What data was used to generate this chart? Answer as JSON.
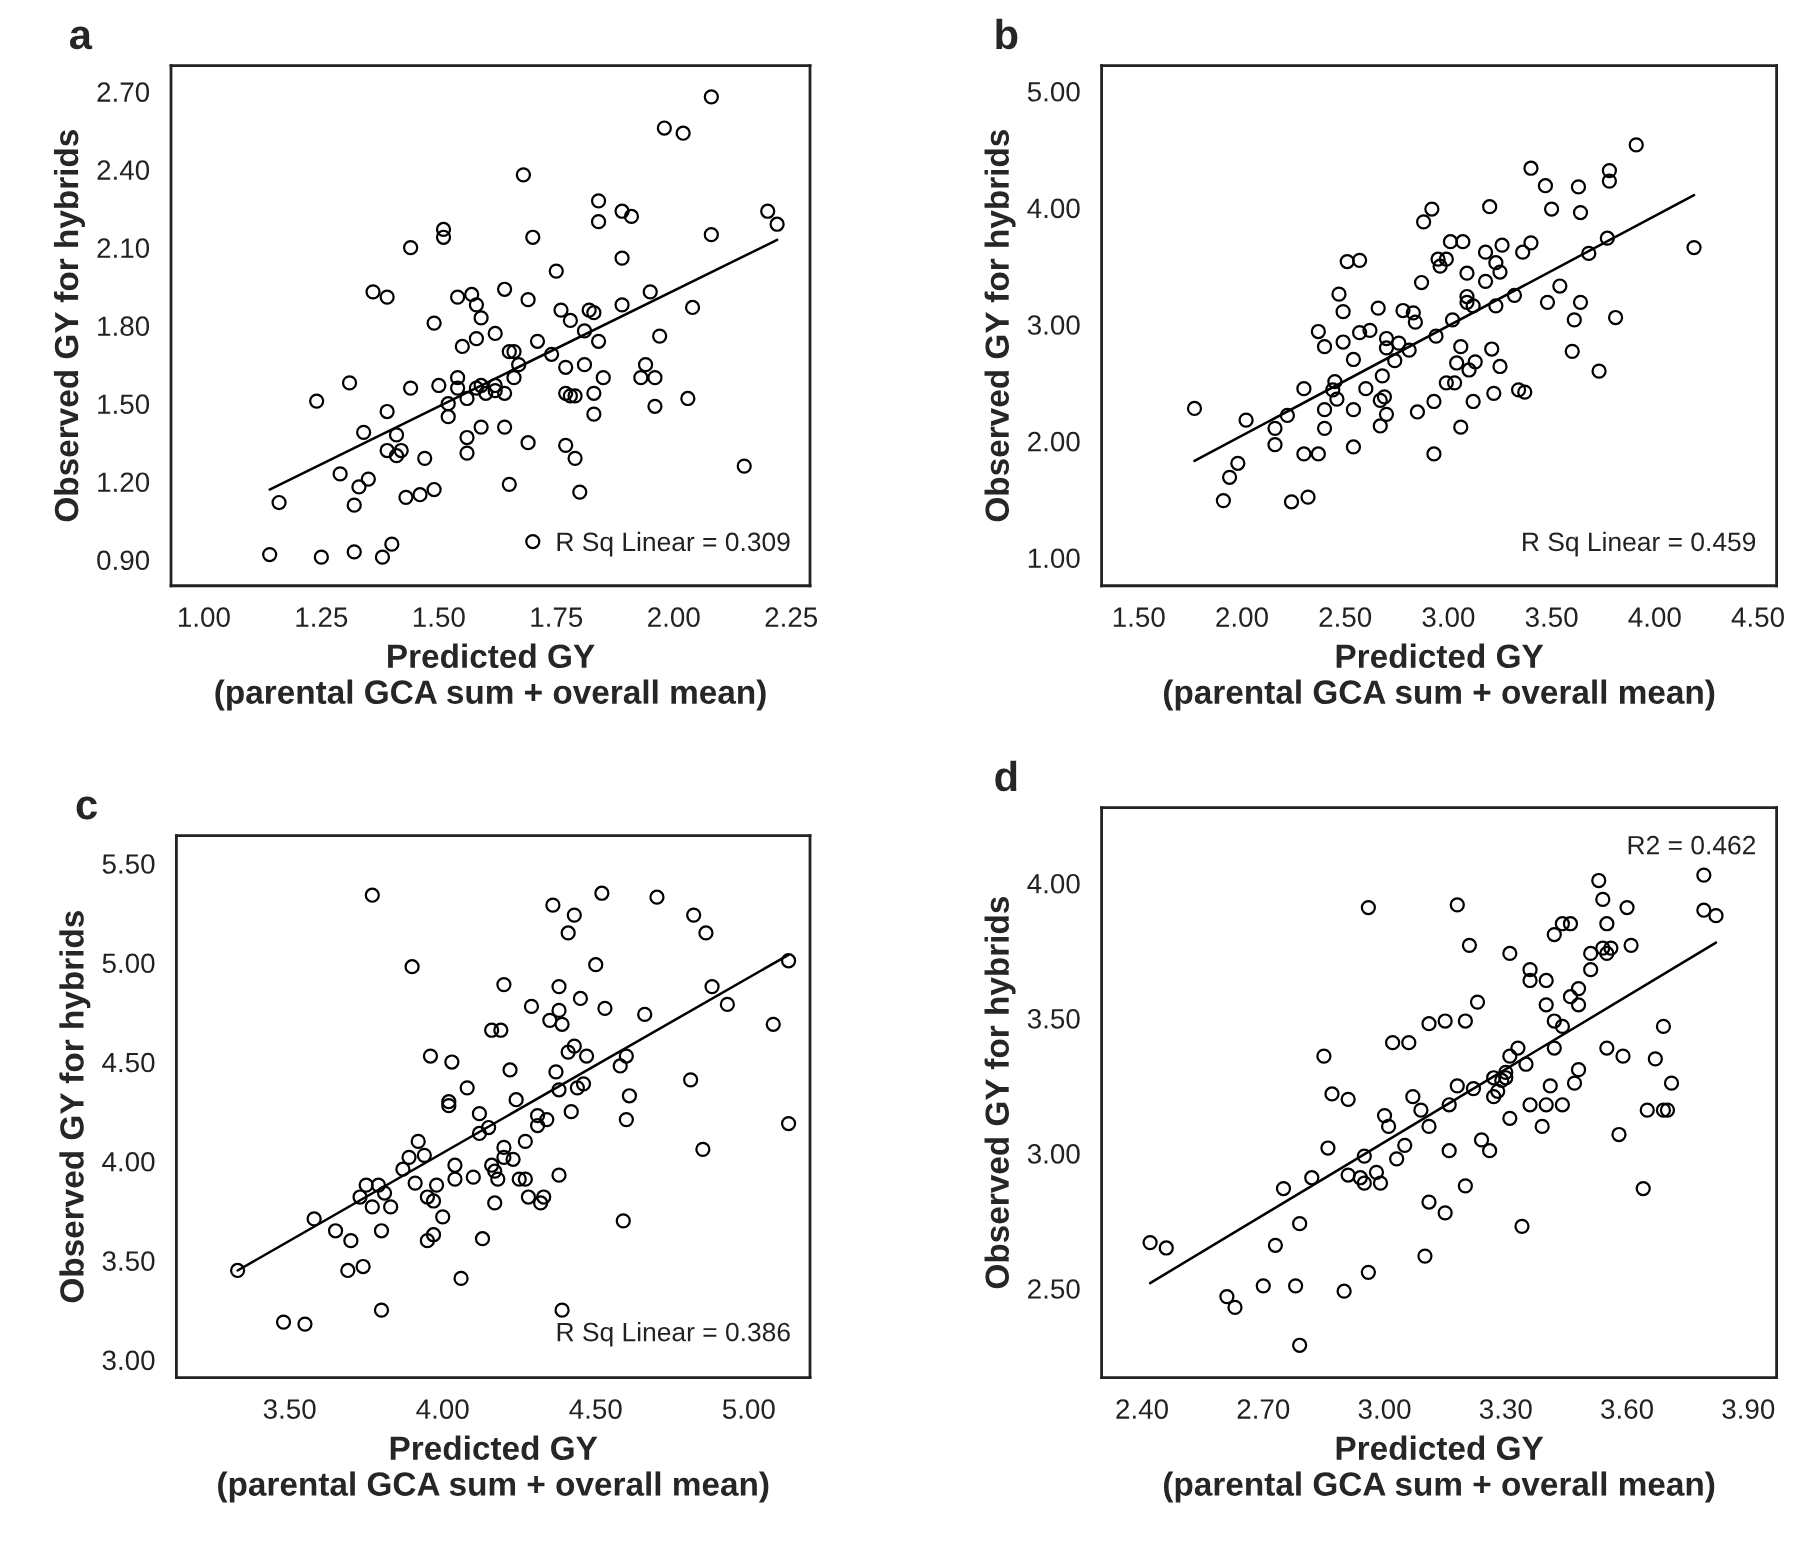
{
  "chart_data": [
    {
      "type": "scatter",
      "title": "a",
      "xlabel": "Predicted GY\n(parental GCA sum + overall mean)",
      "ylabel": "Observed GY for hybrids",
      "annotations": [
        "R Sq Linear = 0.309"
      ],
      "xlim": [
        0.93,
        2.29
      ],
      "ylim": [
        0.8,
        2.8
      ],
      "xticks": [
        {
          "value": 1.0,
          "label": "1.00"
        },
        {
          "value": 1.25,
          "label": "1.25"
        },
        {
          "value": 1.5,
          "label": "1.50"
        },
        {
          "value": 1.75,
          "label": "1.75"
        },
        {
          "value": 2.0,
          "label": "2.00"
        },
        {
          "value": 2.25,
          "label": "2.25"
        }
      ],
      "yticks": [
        {
          "value": 0.9,
          "label": "0.90"
        },
        {
          "value": 1.2,
          "label": "1.20"
        },
        {
          "value": 1.5,
          "label": "1.50"
        },
        {
          "value": 1.8,
          "label": "1.80"
        },
        {
          "value": 2.1,
          "label": "2.10"
        },
        {
          "value": 2.4,
          "label": "2.40"
        },
        {
          "value": 2.7,
          "label": "2.70"
        }
      ],
      "series": [
        {
          "type": "scatter",
          "marker": "circle",
          "color": "#000000",
          "x": [
            1.14,
            1.16,
            1.24,
            1.25,
            1.29,
            1.31,
            1.32,
            1.32,
            1.33,
            1.34,
            1.35,
            1.36,
            1.39,
            1.38,
            1.4,
            1.39,
            1.39,
            1.41,
            1.41,
            1.42,
            1.43,
            1.44,
            1.44,
            1.46,
            1.47,
            1.49,
            1.49,
            1.5,
            1.51,
            1.51,
            1.52,
            1.52,
            1.54,
            1.54,
            1.54,
            1.55,
            1.56,
            1.56,
            1.56,
            1.57,
            1.58,
            1.58,
            1.58,
            1.59,
            1.59,
            1.59,
            1.6,
            1.62,
            1.62,
            1.62,
            1.64,
            1.64,
            1.64,
            1.65,
            1.65,
            1.66,
            1.67,
            1.66,
            1.68,
            1.69,
            1.69,
            1.7,
            1.7,
            1.71,
            1.74,
            1.75,
            1.76,
            1.77,
            1.77,
            1.77,
            1.78,
            1.78,
            1.79,
            1.79,
            1.8,
            1.81,
            1.81,
            1.82,
            1.83,
            1.83,
            1.83,
            1.84,
            1.84,
            1.84,
            1.85,
            1.89,
            1.89,
            1.89,
            1.91,
            1.93,
            1.94,
            1.96,
            1.95,
            1.96,
            1.97,
            1.98,
            2.02,
            2.03,
            2.04,
            2.08,
            2.08,
            2.15,
            2.2,
            2.22
          ],
          "values": [
            0.92,
            1.12,
            1.51,
            0.91,
            1.23,
            1.58,
            1.11,
            0.93,
            1.18,
            1.39,
            1.21,
            1.93,
            1.91,
            0.91,
            0.96,
            1.47,
            1.32,
            1.38,
            1.3,
            1.32,
            1.14,
            2.1,
            1.56,
            1.15,
            1.29,
            1.81,
            1.17,
            1.57,
            2.17,
            2.14,
            1.45,
            1.5,
            1.91,
            1.6,
            1.56,
            1.72,
            1.52,
            1.37,
            1.31,
            1.92,
            1.75,
            1.88,
            1.56,
            1.83,
            1.57,
            1.41,
            1.54,
            1.57,
            1.77,
            1.55,
            1.54,
            1.94,
            1.41,
            1.7,
            1.19,
            1.7,
            1.65,
            1.6,
            2.38,
            1.35,
            1.9,
            0.97,
            2.14,
            1.74,
            1.69,
            2.01,
            1.86,
            1.34,
            1.64,
            1.54,
            1.82,
            1.53,
            1.53,
            1.29,
            1.16,
            1.78,
            1.65,
            1.86,
            1.54,
            1.85,
            1.46,
            1.74,
            2.28,
            2.2,
            1.6,
            2.24,
            2.06,
            1.88,
            2.22,
            1.6,
            1.65,
            1.6,
            1.93,
            1.49,
            1.76,
            2.56,
            2.54,
            1.52,
            1.87,
            2.15,
            2.68,
            1.26,
            2.24,
            2.19
          ]
        },
        {
          "type": "line",
          "color": "#000000",
          "x": [
            1.14,
            2.22
          ],
          "values": [
            1.17,
            2.13
          ]
        }
      ]
    },
    {
      "type": "scatter",
      "title": "b",
      "xlabel": "Predicted GY\n(parental GCA sum + overall mean)",
      "ylabel": "Observed GY for hybrids",
      "annotations": [
        "R Sq Linear = 0.459"
      ],
      "xlim": [
        1.32,
        4.59
      ],
      "ylim": [
        0.76,
        5.22
      ],
      "xticks": [
        {
          "value": 1.5,
          "label": "1.50"
        },
        {
          "value": 2.0,
          "label": "2.00"
        },
        {
          "value": 2.5,
          "label": "2.50"
        },
        {
          "value": 3.0,
          "label": "3.00"
        },
        {
          "value": 3.5,
          "label": "3.50"
        },
        {
          "value": 4.0,
          "label": "4.00"
        },
        {
          "value": 4.5,
          "label": "4.50"
        }
      ],
      "yticks": [
        {
          "value": 1.0,
          "label": "1.00"
        },
        {
          "value": 2.0,
          "label": "2.00"
        },
        {
          "value": 3.0,
          "label": "3.00"
        },
        {
          "value": 4.0,
          "label": "4.00"
        },
        {
          "value": 5.0,
          "label": "5.00"
        }
      ],
      "series": [
        {
          "type": "scatter",
          "marker": "circle",
          "color": "#000000",
          "x": [
            1.77,
            1.91,
            1.94,
            1.98,
            2.02,
            2.16,
            2.16,
            2.22,
            2.24,
            2.3,
            2.3,
            2.32,
            2.37,
            2.37,
            2.4,
            2.4,
            2.4,
            2.44,
            2.45,
            2.46,
            2.47,
            2.49,
            2.49,
            2.51,
            2.54,
            2.54,
            2.54,
            2.57,
            2.57,
            2.6,
            2.62,
            2.66,
            2.67,
            2.67,
            2.68,
            2.69,
            2.7,
            2.7,
            2.7,
            2.74,
            2.76,
            2.78,
            2.81,
            2.83,
            2.84,
            2.85,
            2.87,
            2.88,
            2.92,
            2.93,
            2.93,
            2.94,
            2.95,
            2.96,
            2.99,
            2.99,
            3.01,
            3.02,
            3.03,
            3.04,
            3.06,
            3.06,
            3.07,
            3.09,
            3.09,
            3.09,
            3.1,
            3.12,
            3.12,
            3.13,
            3.18,
            3.18,
            3.2,
            3.21,
            3.22,
            3.23,
            3.23,
            3.25,
            3.25,
            3.26,
            3.32,
            3.34,
            3.37,
            3.36,
            3.4,
            3.4,
            3.47,
            3.48,
            3.5,
            3.54,
            3.6,
            3.61,
            3.63,
            3.64,
            3.64,
            3.68,
            3.73,
            3.77,
            3.78,
            3.78,
            3.81,
            3.91,
            4.19
          ],
          "values": [
            2.28,
            1.49,
            1.69,
            1.81,
            2.18,
            2.11,
            1.97,
            2.22,
            1.48,
            2.45,
            1.89,
            1.52,
            2.94,
            1.89,
            2.81,
            2.27,
            2.11,
            2.44,
            2.51,
            2.36,
            3.26,
            3.11,
            2.85,
            3.54,
            2.27,
            1.95,
            2.7,
            3.55,
            2.93,
            2.45,
            2.95,
            3.14,
            2.35,
            2.13,
            2.56,
            2.38,
            2.88,
            2.23,
            2.8,
            2.69,
            2.84,
            3.12,
            2.78,
            3.1,
            3.02,
            2.25,
            3.36,
            3.88,
            3.99,
            2.34,
            1.89,
            2.9,
            3.56,
            3.5,
            3.56,
            2.5,
            3.71,
            3.04,
            2.5,
            2.67,
            2.81,
            2.12,
            3.71,
            3.24,
            3.44,
            3.19,
            2.61,
            3.16,
            2.34,
            2.68,
            3.62,
            3.37,
            4.01,
            2.79,
            2.41,
            3.53,
            3.16,
            3.45,
            2.64,
            3.68,
            3.25,
            2.44,
            2.42,
            3.62,
            4.34,
            3.7,
            4.19,
            3.19,
            3.99,
            3.33,
            2.77,
            3.04,
            4.18,
            3.96,
            3.19,
            3.61,
            2.6,
            3.74,
            4.32,
            4.23,
            3.06,
            4.54,
            3.66
          ]
        },
        {
          "type": "line",
          "color": "#000000",
          "x": [
            1.77,
            4.19
          ],
          "values": [
            1.83,
            4.11
          ]
        }
      ]
    },
    {
      "type": "scatter",
      "title": "c",
      "xlabel": "Predicted GY\n(parental GCA sum + overall mean)",
      "ylabel": "Observed GY for hybrids",
      "annotations": [
        "R Sq Linear = 0.386"
      ],
      "xlim": [
        3.13,
        5.2
      ],
      "ylim": [
        2.91,
        5.64
      ],
      "xticks": [
        {
          "value": 3.5,
          "label": "3.50"
        },
        {
          "value": 4.0,
          "label": "4.00"
        },
        {
          "value": 4.5,
          "label": "4.50"
        },
        {
          "value": 5.0,
          "label": "5.00"
        }
      ],
      "yticks": [
        {
          "value": 3.0,
          "label": "3.00"
        },
        {
          "value": 3.5,
          "label": "3.50"
        },
        {
          "value": 4.0,
          "label": "4.00"
        },
        {
          "value": 4.5,
          "label": "4.50"
        },
        {
          "value": 5.0,
          "label": "5.00"
        },
        {
          "value": 5.5,
          "label": "5.50"
        }
      ],
      "series": [
        {
          "type": "scatter",
          "marker": "circle",
          "color": "#000000",
          "x": [
            3.33,
            3.48,
            3.55,
            3.58,
            3.65,
            3.69,
            3.7,
            3.73,
            3.74,
            3.75,
            3.77,
            3.77,
            3.79,
            3.8,
            3.8,
            3.81,
            3.83,
            3.87,
            3.89,
            3.9,
            3.91,
            3.92,
            3.94,
            3.95,
            3.95,
            3.96,
            3.97,
            3.97,
            3.98,
            4.0,
            4.03,
            4.02,
            4.02,
            4.04,
            4.04,
            4.06,
            4.08,
            4.1,
            4.12,
            4.12,
            4.13,
            4.15,
            4.16,
            4.17,
            4.17,
            4.18,
            4.2,
            4.16,
            4.19,
            4.2,
            4.2,
            4.22,
            4.23,
            4.24,
            4.25,
            4.27,
            4.27,
            4.28,
            4.29,
            4.31,
            4.31,
            4.32,
            4.33,
            4.34,
            4.35,
            4.36,
            4.37,
            4.38,
            4.38,
            4.38,
            4.38,
            4.39,
            4.39,
            4.41,
            4.41,
            4.42,
            4.43,
            4.43,
            4.44,
            4.45,
            4.46,
            4.47,
            4.5,
            4.52,
            4.53,
            4.58,
            4.59,
            4.6,
            4.6,
            4.61,
            4.66,
            4.7,
            4.81,
            4.82,
            4.85,
            4.86,
            4.88,
            4.93,
            5.13,
            5.08,
            5.13
          ],
          "values": [
            3.45,
            3.19,
            3.18,
            3.71,
            3.65,
            3.45,
            3.6,
            3.82,
            3.47,
            3.88,
            3.77,
            5.34,
            3.88,
            3.65,
            3.25,
            3.84,
            3.77,
            3.96,
            4.02,
            4.98,
            3.89,
            4.1,
            4.03,
            3.82,
            3.6,
            4.53,
            3.63,
            3.8,
            3.88,
            3.72,
            4.5,
            4.3,
            4.28,
            3.91,
            3.98,
            3.41,
            4.37,
            3.92,
            4.24,
            4.14,
            3.61,
            4.17,
            3.98,
            3.95,
            3.79,
            3.91,
            4.89,
            4.66,
            4.66,
            4.07,
            4.02,
            4.46,
            4.01,
            4.31,
            3.91,
            3.91,
            4.1,
            3.82,
            4.78,
            4.23,
            4.18,
            3.79,
            3.82,
            4.21,
            4.71,
            5.29,
            4.45,
            4.88,
            3.93,
            4.76,
            4.36,
            4.69,
            3.25,
            5.15,
            4.55,
            4.25,
            5.24,
            4.58,
            4.37,
            4.82,
            4.39,
            4.53,
            4.99,
            5.35,
            4.77,
            4.48,
            3.7,
            4.53,
            4.21,
            4.33,
            4.74,
            5.33,
            4.41,
            5.24,
            4.06,
            5.15,
            4.88,
            4.79,
            5.01,
            4.69,
            4.19
          ]
        },
        {
          "type": "line",
          "color": "#000000",
          "x": [
            3.33,
            5.13
          ],
          "values": [
            3.45,
            5.04
          ]
        }
      ]
    },
    {
      "type": "scatter",
      "title": "d",
      "xlabel": "Predicted GY\n(parental GCA sum + overall mean)",
      "ylabel": "Observed GY for hybrids",
      "annotations": [
        "R2 = 0.462"
      ],
      "xlim": [
        2.3,
        3.97
      ],
      "ylim": [
        2.17,
        4.28
      ],
      "xticks": [
        {
          "value": 2.4,
          "label": "2.40"
        },
        {
          "value": 2.7,
          "label": "2.70"
        },
        {
          "value": 3.0,
          "label": "3.00"
        },
        {
          "value": 3.3,
          "label": "3.30"
        },
        {
          "value": 3.6,
          "label": "3.60"
        },
        {
          "value": 3.9,
          "label": "3.90"
        }
      ],
      "yticks": [
        {
          "value": 2.5,
          "label": "2.50"
        },
        {
          "value": 3.0,
          "label": "3.00"
        },
        {
          "value": 3.5,
          "label": "3.50"
        },
        {
          "value": 4.0,
          "label": "4.00"
        }
      ],
      "series": [
        {
          "type": "scatter",
          "marker": "circle",
          "color": "#000000",
          "x": [
            2.42,
            2.46,
            2.61,
            2.63,
            2.7,
            2.73,
            2.75,
            2.78,
            2.79,
            2.82,
            2.85,
            2.86,
            2.87,
            2.9,
            2.91,
            2.91,
            2.94,
            2.95,
            2.95,
            2.96,
            2.96,
            2.98,
            2.99,
            3.0,
            3.01,
            3.02,
            3.03,
            3.05,
            3.06,
            3.07,
            3.09,
            3.1,
            3.11,
            3.11,
            3.11,
            3.15,
            3.15,
            3.16,
            3.16,
            3.18,
            3.18,
            3.2,
            3.2,
            3.21,
            3.22,
            3.23,
            3.24,
            3.26,
            3.27,
            3.27,
            3.28,
            3.29,
            3.3,
            3.3,
            3.31,
            3.31,
            3.31,
            3.33,
            3.34,
            3.35,
            3.36,
            3.36,
            3.36,
            3.39,
            3.4,
            3.4,
            3.4,
            3.41,
            3.42,
            3.42,
            3.42,
            3.44,
            3.44,
            3.44,
            3.46,
            3.46,
            3.47,
            3.48,
            3.48,
            3.48,
            3.51,
            3.51,
            3.53,
            3.54,
            3.54,
            3.55,
            3.55,
            3.55,
            3.56,
            3.58,
            3.59,
            3.6,
            3.61,
            3.64,
            3.65,
            3.67,
            3.69,
            3.69,
            3.7,
            3.71,
            3.79,
            3.79,
            3.82,
            2.79
          ],
          "values": [
            2.67,
            2.65,
            2.47,
            2.43,
            2.51,
            2.66,
            2.87,
            2.51,
            2.74,
            2.91,
            3.36,
            3.02,
            3.22,
            2.49,
            3.2,
            2.92,
            2.91,
            2.99,
            2.89,
            2.56,
            3.91,
            2.93,
            2.89,
            3.14,
            3.1,
            3.41,
            2.98,
            3.03,
            3.41,
            3.21,
            3.16,
            2.62,
            3.48,
            2.82,
            3.1,
            2.78,
            3.49,
            3.01,
            3.18,
            3.25,
            3.92,
            2.88,
            3.49,
            3.77,
            3.24,
            3.56,
            3.05,
            3.01,
            3.21,
            3.28,
            3.23,
            3.27,
            3.3,
            3.28,
            3.74,
            3.36,
            3.13,
            3.39,
            2.73,
            3.33,
            3.18,
            3.68,
            3.64,
            3.1,
            3.64,
            3.18,
            3.55,
            3.25,
            3.39,
            3.81,
            3.49,
            3.85,
            3.18,
            3.47,
            3.58,
            3.85,
            3.26,
            3.55,
            3.61,
            3.31,
            3.68,
            3.74,
            4.01,
            3.76,
            3.94,
            3.74,
            3.39,
            3.85,
            3.76,
            3.07,
            3.36,
            3.91,
            3.77,
            2.87,
            3.16,
            3.35,
            3.47,
            3.16,
            3.16,
            3.26,
            4.03,
            3.9,
            3.88,
            2.29
          ]
        },
        {
          "type": "line",
          "color": "#000000",
          "x": [
            2.42,
            3.82
          ],
          "values": [
            2.52,
            3.78
          ]
        }
      ]
    }
  ]
}
